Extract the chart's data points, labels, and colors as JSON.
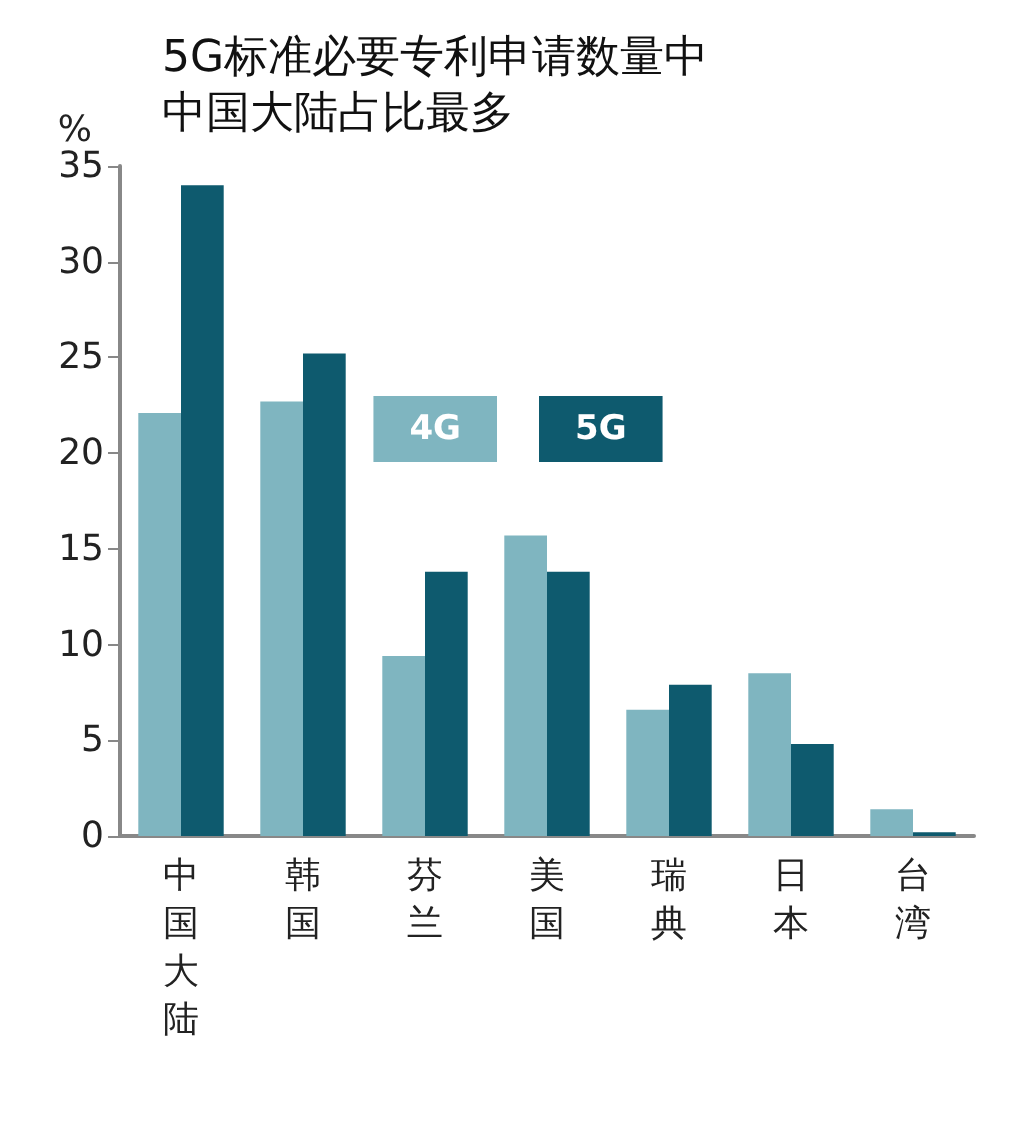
{
  "chart_data": {
    "type": "bar",
    "title": "5G标准必要专利申请数量中中国大陆占比最多",
    "ylabel": "%",
    "categories": [
      "中国大陆",
      "韩国",
      "芬兰",
      "美国",
      "瑞典",
      "日本",
      "台湾"
    ],
    "series": [
      {
        "name": "4G",
        "color": "#7fb5c0",
        "values": [
          22.1,
          22.7,
          9.4,
          15.7,
          6.6,
          8.5,
          1.4
        ]
      },
      {
        "name": "5G",
        "color": "#0e5a6e",
        "values": [
          34.0,
          25.2,
          13.8,
          13.8,
          7.9,
          4.8,
          0.2
        ]
      }
    ],
    "ylim": [
      0,
      35
    ],
    "yticks": [
      0,
      5,
      10,
      15,
      20,
      25,
      30,
      35
    ],
    "grid": false,
    "legend": "top"
  }
}
